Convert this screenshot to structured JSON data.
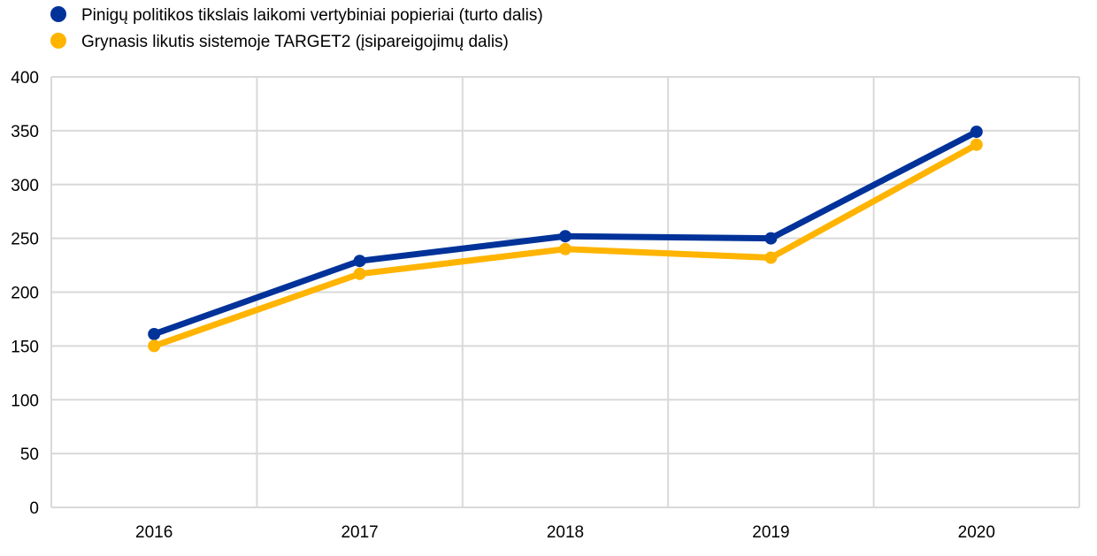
{
  "chart_data": {
    "type": "line",
    "title": "",
    "xlabel": "",
    "ylabel": "",
    "categories": [
      "2016",
      "2017",
      "2018",
      "2019",
      "2020"
    ],
    "ylim": [
      0,
      400
    ],
    "yticks": [
      0,
      50,
      100,
      150,
      200,
      250,
      300,
      350,
      400
    ],
    "grid": true,
    "legend_position": "top-left",
    "series": [
      {
        "name": "Pinigų politikos tikslais laikomi vertybiniai popieriai (turto dalis)",
        "color": "#003299",
        "values": [
          161,
          229,
          252,
          250,
          349
        ]
      },
      {
        "name": "Grynasis likutis sistemoje TARGET2 (įsipareigojimų dalis)",
        "color": "#FFB400",
        "values": [
          150,
          217,
          240,
          232,
          337
        ]
      }
    ]
  }
}
